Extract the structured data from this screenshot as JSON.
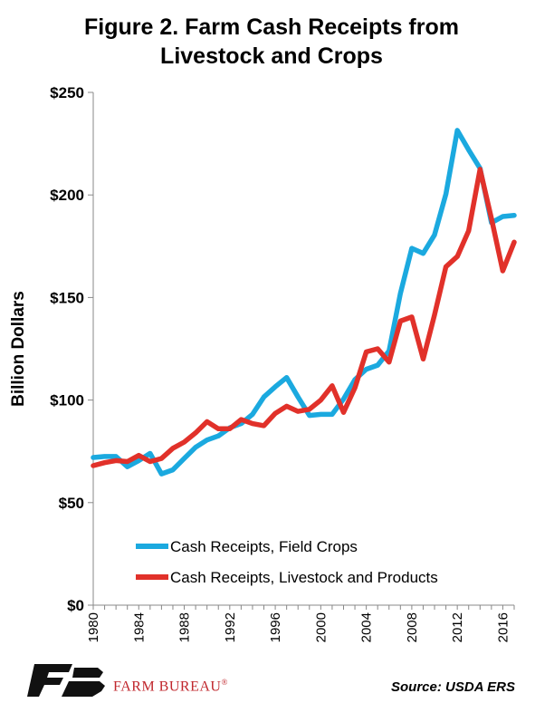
{
  "title": {
    "line1": "Figure 2. Farm Cash Receipts from",
    "line2": "Livestock and Crops"
  },
  "brand": {
    "name": "FARM BUREAU",
    "mark": "®",
    "logo_icon": "farm-bureau-fb-icon"
  },
  "source": "Source: USDA ERS",
  "chart_data": {
    "type": "line",
    "title": "Figure 2. Farm Cash Receipts from Livestock and Crops",
    "xlabel": "",
    "ylabel": "Billion Dollars",
    "ylim": [
      0,
      250
    ],
    "xlim": [
      1980,
      2017
    ],
    "y_ticks": [
      "$0",
      "$50",
      "$100",
      "$150",
      "$200",
      "$250"
    ],
    "x_ticks": [
      "1980",
      "1984",
      "1988",
      "1992",
      "1996",
      "2000",
      "2004",
      "2008",
      "2012",
      "2016"
    ],
    "grid": false,
    "legend_position": "bottom-left",
    "x": [
      1980,
      1981,
      1982,
      1983,
      1984,
      1985,
      1986,
      1987,
      1988,
      1989,
      1990,
      1991,
      1992,
      1993,
      1994,
      1995,
      1996,
      1997,
      1998,
      1999,
      2000,
      2001,
      2002,
      2003,
      2004,
      2005,
      2006,
      2007,
      2008,
      2009,
      2010,
      2011,
      2012,
      2013,
      2014,
      2015,
      2016,
      2017
    ],
    "series": [
      {
        "name": "Cash Receipts, Field Crops",
        "color": "#1ba9df",
        "values": [
          72,
          72.5,
          72.5,
          67.5,
          70.5,
          74,
          64,
          66,
          71.5,
          77,
          80.5,
          82.5,
          86.5,
          88.5,
          93,
          101.5,
          106.5,
          111,
          101.5,
          92.5,
          93,
          93,
          100.5,
          110,
          115,
          117,
          124,
          152,
          174,
          171.5,
          180.5,
          200.5,
          231.5,
          222,
          213,
          186.5,
          189.5,
          190
        ]
      },
      {
        "name": "Cash Receipts, Livestock and Products",
        "color": "#e1312a",
        "values": [
          68,
          69.5,
          70.5,
          70,
          73,
          70,
          71.5,
          76.5,
          79.5,
          84,
          89.5,
          86,
          86,
          90.5,
          88.5,
          87.5,
          93.5,
          97,
          94.5,
          95.5,
          100,
          107,
          94,
          106,
          123.5,
          125,
          118.5,
          138.5,
          140.5,
          120,
          141.5,
          165,
          170,
          182.5,
          212.5,
          188.5,
          163,
          177
        ]
      }
    ]
  }
}
